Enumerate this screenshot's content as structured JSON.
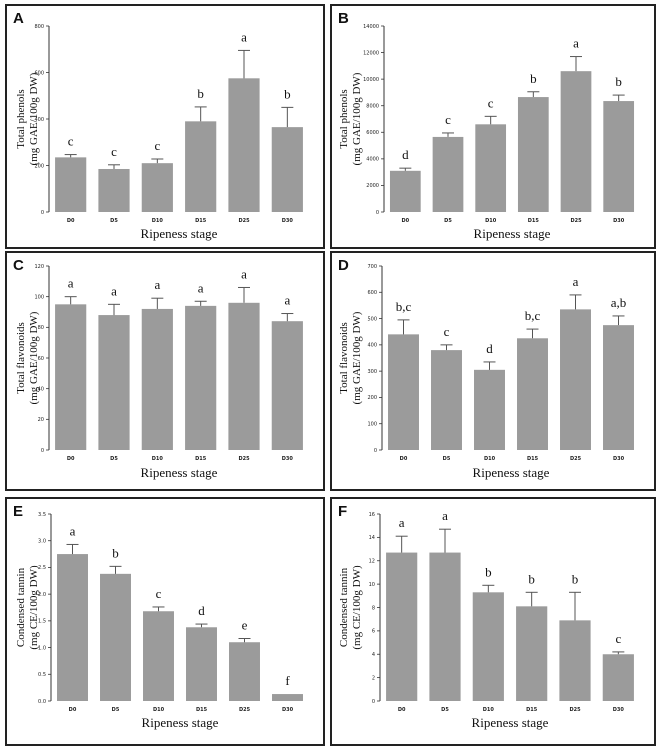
{
  "chart_data": [
    {
      "type": "bar",
      "panel": "A",
      "categories": [
        "D0",
        "D5",
        "D10",
        "D15",
        "D25",
        "D30"
      ],
      "values": [
        235,
        185,
        210,
        390,
        575,
        365
      ],
      "errors": [
        12,
        18,
        18,
        62,
        120,
        85
      ],
      "labels": [
        "c",
        "c",
        "c",
        "b",
        "a",
        "b"
      ],
      "ylim": [
        0,
        800
      ],
      "yticks": [
        0,
        200,
        400,
        600,
        800
      ],
      "xlabel": "Ripeness stage",
      "ylabel": [
        "Total phenols",
        "(mg GAE/100g DW)"
      ]
    },
    {
      "type": "bar",
      "panel": "B",
      "categories": [
        "D0",
        "D5",
        "D10",
        "D15",
        "D25",
        "D30"
      ],
      "values": [
        3100,
        5650,
        6600,
        8650,
        10600,
        8350
      ],
      "errors": [
        200,
        300,
        600,
        400,
        1100,
        450
      ],
      "labels": [
        "d",
        "c",
        "c",
        "b",
        "a",
        "b"
      ],
      "ylim": [
        0,
        14000
      ],
      "yticks": [
        0,
        2000,
        4000,
        6000,
        8000,
        10000,
        12000,
        14000
      ],
      "xlabel": "Ripeness stage",
      "ylabel": [
        "Total phenols",
        "(mg GAE/100g DW)"
      ]
    },
    {
      "type": "bar",
      "panel": "C",
      "categories": [
        "D0",
        "D5",
        "D10",
        "D15",
        "D25",
        "D30"
      ],
      "values": [
        95,
        88,
        92,
        94,
        96,
        84
      ],
      "errors": [
        5,
        7,
        7,
        3,
        10,
        5
      ],
      "labels": [
        "a",
        "a",
        "a",
        "a",
        "a",
        "a"
      ],
      "ylim": [
        0,
        120
      ],
      "yticks": [
        0,
        20,
        40,
        60,
        80,
        100,
        120
      ],
      "xlabel": "Ripeness stage",
      "ylabel": [
        "Total flavonoids",
        "(mg GAE/100g DW)"
      ]
    },
    {
      "type": "bar",
      "panel": "D",
      "categories": [
        "D0",
        "D5",
        "D10",
        "D15",
        "D25",
        "D30"
      ],
      "values": [
        440,
        380,
        305,
        425,
        535,
        475
      ],
      "errors": [
        55,
        20,
        30,
        35,
        55,
        35
      ],
      "labels": [
        "b,c",
        "c",
        "d",
        "b,c",
        "a",
        "a,b"
      ],
      "ylim": [
        0,
        700
      ],
      "yticks": [
        0,
        100,
        200,
        300,
        400,
        500,
        600,
        700
      ],
      "xlabel": "Ripeness stage",
      "ylabel": [
        "Total flavonoids",
        "(mg GAE/100g DW)"
      ]
    },
    {
      "type": "bar",
      "panel": "E",
      "categories": [
        "D0",
        "D5",
        "D10",
        "D15",
        "D25",
        "D30"
      ],
      "values": [
        2.75,
        2.38,
        1.68,
        1.38,
        1.1,
        0.13
      ],
      "errors": [
        0.18,
        0.14,
        0.08,
        0.06,
        0.07,
        0.0
      ],
      "labels": [
        "a",
        "b",
        "c",
        "d",
        "e",
        "f"
      ],
      "ylim": [
        0,
        3.5
      ],
      "yticks": [
        "0.0",
        "0.5",
        "1.0",
        "1.5",
        "2.0",
        "2.5",
        "3.0",
        "3.5"
      ],
      "xlabel": "Ripeness stage",
      "ylabel": [
        "Condensed tannin",
        "(mg CE/100g DW)"
      ]
    },
    {
      "type": "bar",
      "panel": "F",
      "categories": [
        "D0",
        "D5",
        "D10",
        "D15",
        "D25",
        "D30"
      ],
      "values": [
        12.7,
        12.7,
        9.3,
        8.1,
        6.9,
        4.0
      ],
      "errors": [
        1.4,
        2.0,
        0.6,
        1.2,
        2.4,
        0.2
      ],
      "labels": [
        "a",
        "a",
        "b",
        "b",
        "b",
        "c"
      ],
      "ylim": [
        0,
        16
      ],
      "yticks": [
        0,
        2,
        4,
        6,
        8,
        10,
        12,
        14,
        16
      ],
      "xlabel": "Ripeness stage",
      "ylabel": [
        "Condensed tannin",
        "(mg CE/100g DW)"
      ]
    }
  ]
}
